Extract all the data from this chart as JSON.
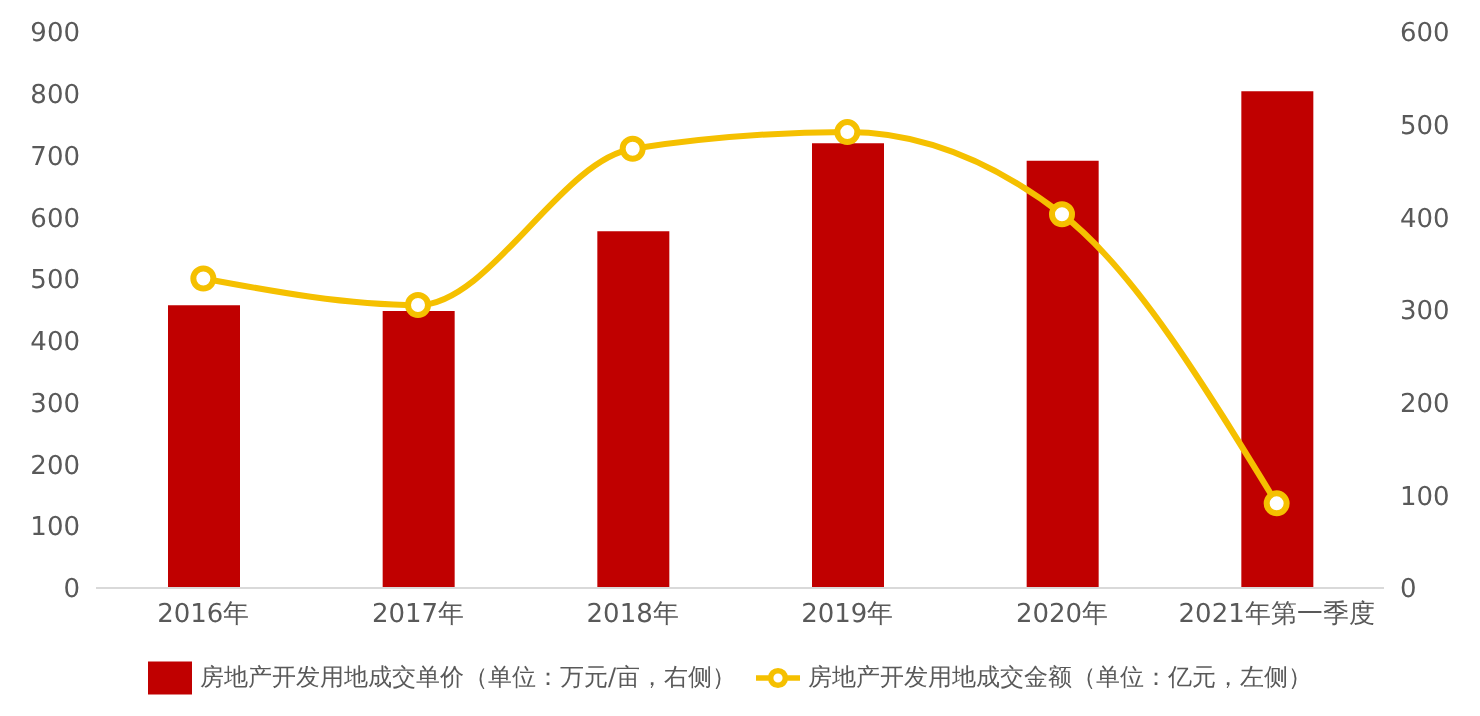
{
  "chart_data": {
    "type": "bar",
    "categories": [
      "2016年",
      "2017年",
      "2018年",
      "2019年",
      "2020年",
      "2021年第一季度"
    ],
    "series": [
      {
        "name": "房地产开发用地成交单价（单位：万元/亩，右侧）",
        "axis": "y2",
        "color": "#c00000",
        "values": [
          305,
          299,
          385,
          480,
          461,
          536
        ]
      },
      {
        "name": "房地产开发用地成交金额（单位：亿元，左侧）",
        "type": "line",
        "axis": "y",
        "color": "#f5c000",
        "values": [
          501,
          458,
          711,
          738,
          605,
          137
        ]
      }
    ],
    "ylim": [
      0,
      900
    ],
    "yticks": [
      0,
      100,
      200,
      300,
      400,
      500,
      600,
      700,
      800,
      900
    ],
    "y2lim": [
      0,
      600
    ],
    "y2ticks": [
      0,
      100,
      200,
      300,
      400,
      500,
      600
    ],
    "legend": "bottom",
    "marker": "circle"
  }
}
